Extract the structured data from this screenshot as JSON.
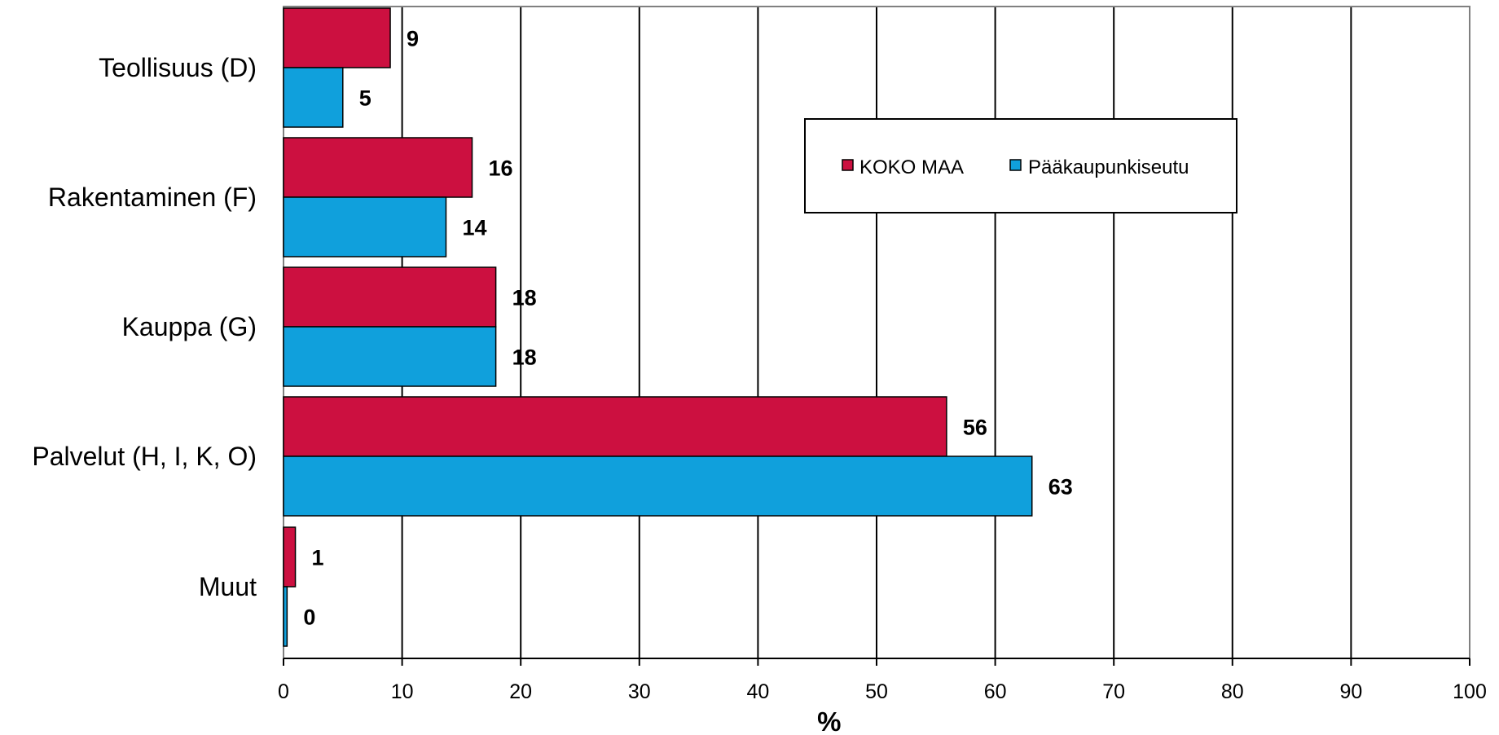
{
  "chart_data": {
    "type": "bar",
    "orientation": "horizontal",
    "categories": [
      "Teollisuus (D)",
      "Rakentaminen (F)",
      "Kauppa (G)",
      "Palvelut (H, I, K, O)",
      "Muut"
    ],
    "series": [
      {
        "name": "KOKO MAA",
        "color": "#CC1040",
        "values": [
          9,
          16,
          18,
          56,
          1
        ]
      },
      {
        "name": "Pääkaupunkiseutu",
        "color": "#10A0DC",
        "values": [
          5,
          14,
          18,
          63,
          0
        ]
      }
    ],
    "bar_lengths": {
      "KOKO MAA": [
        9,
        15.9,
        17.9,
        55.9,
        1
      ],
      "Pääkaupunkiseutu": [
        5,
        13.7,
        17.9,
        63.1,
        0.3
      ]
    },
    "data_labels": {
      "KOKO MAA": [
        "9",
        "16",
        "18",
        "56",
        "1"
      ],
      "Pääkaupunkiseutu": [
        "5",
        "14",
        "18",
        "63",
        "0"
      ]
    },
    "x_ticks": [
      "0",
      "10",
      "20",
      "30",
      "40",
      "50",
      "60",
      "70",
      "80",
      "90",
      "100"
    ],
    "xlim": [
      0,
      100
    ],
    "xlabel": "%",
    "ylabel": "",
    "title": "",
    "grid": "vertical",
    "legend_position": "upper-center-right"
  }
}
